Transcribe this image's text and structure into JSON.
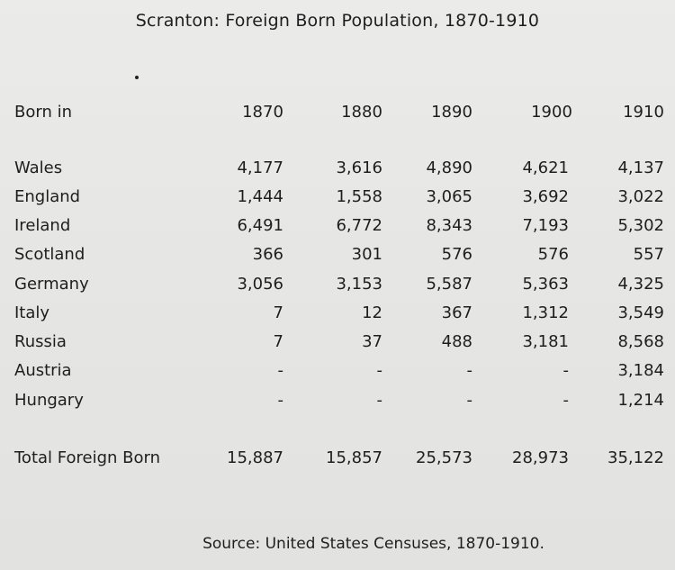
{
  "title": "Scranton: Foreign Born Population, 1870-1910",
  "header": {
    "label": "Born in",
    "years": [
      "1870",
      "1880",
      "1890",
      "1900",
      "1910"
    ]
  },
  "rows": [
    {
      "label": "Wales",
      "values": [
        "4,177",
        "3,616",
        "4,890",
        "4,621",
        "4,137"
      ]
    },
    {
      "label": "England",
      "values": [
        "1,444",
        "1,558",
        "3,065",
        "3,692",
        "3,022"
      ]
    },
    {
      "label": "Ireland",
      "values": [
        "6,491",
        "6,772",
        "8,343",
        "7,193",
        "5,302"
      ]
    },
    {
      "label": "Scotland",
      "values": [
        "366",
        "301",
        "576",
        "576",
        "557"
      ]
    },
    {
      "label": "Germany",
      "values": [
        "3,056",
        "3,153",
        "5,587",
        "5,363",
        "4,325"
      ]
    },
    {
      "label": "Italy",
      "values": [
        "7",
        "12",
        "367",
        "1,312",
        "3,549"
      ]
    },
    {
      "label": "Russia",
      "values": [
        "7",
        "37",
        "488",
        "3,181",
        "8,568"
      ]
    },
    {
      "label": "Austria",
      "values": [
        "-",
        "-",
        "-",
        "-",
        "3,184"
      ]
    },
    {
      "label": "Hungary",
      "values": [
        "-",
        "-",
        "-",
        "-",
        "1,214"
      ]
    }
  ],
  "total": {
    "label": "Total Foreign Born",
    "values": [
      "15,887",
      "15,857",
      "25,573",
      "28,973",
      "35,122"
    ]
  },
  "source": "Source:  United States Censuses, 1870-1910."
}
